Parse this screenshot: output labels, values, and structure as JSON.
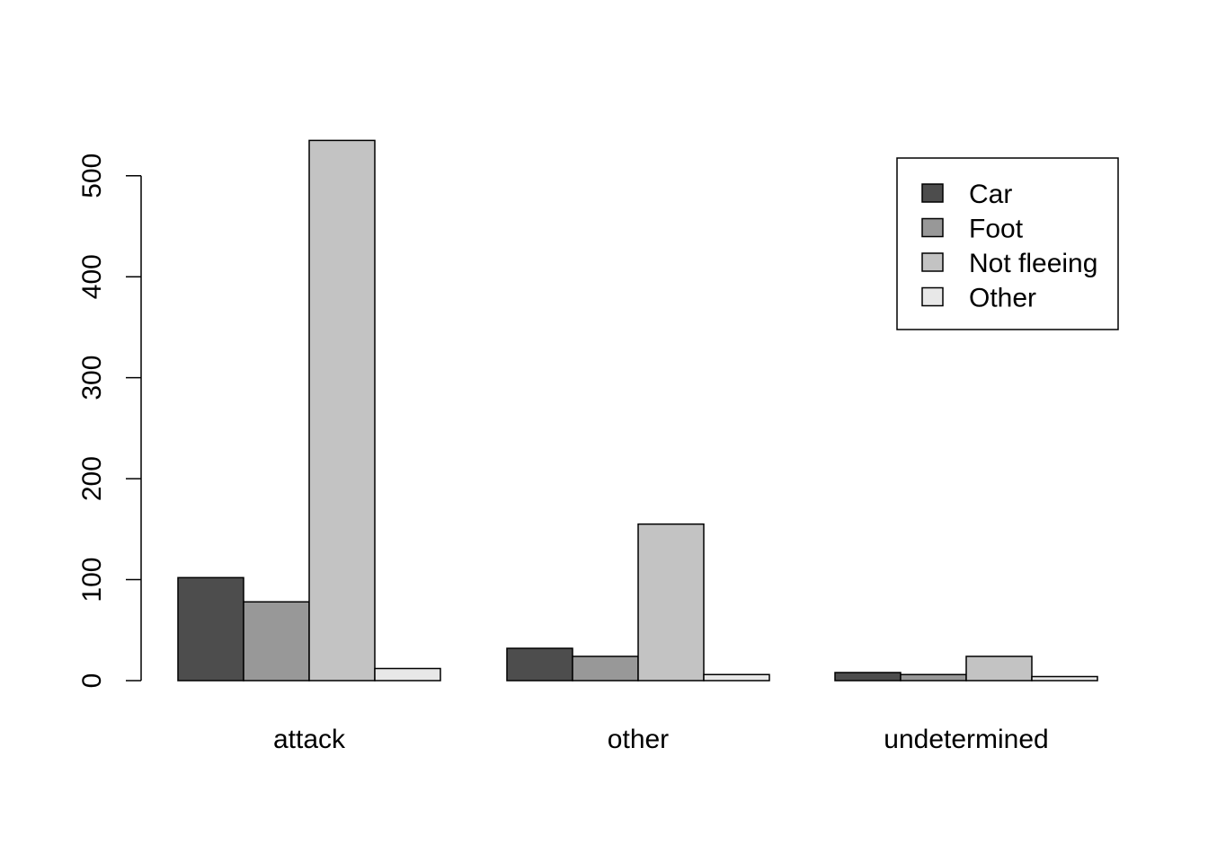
{
  "chart_data": {
    "type": "bar",
    "grouped": true,
    "categories": [
      "attack",
      "other",
      "undetermined"
    ],
    "series": [
      {
        "name": "Car",
        "color": "#4d4d4d",
        "values": [
          102,
          32,
          8
        ]
      },
      {
        "name": "Foot",
        "color": "#989898",
        "values": [
          78,
          24,
          6
        ]
      },
      {
        "name": "Not fleeing",
        "color": "#c3c3c3",
        "values": [
          535,
          155,
          24
        ]
      },
      {
        "name": "Other",
        "color": "#e8e8e8",
        "values": [
          12,
          6,
          4
        ]
      }
    ],
    "ylim": [
      0,
      535
    ],
    "yticks": [
      "0",
      "100",
      "200",
      "300",
      "400",
      "500"
    ],
    "legend_position": "top-right",
    "grid": false
  }
}
